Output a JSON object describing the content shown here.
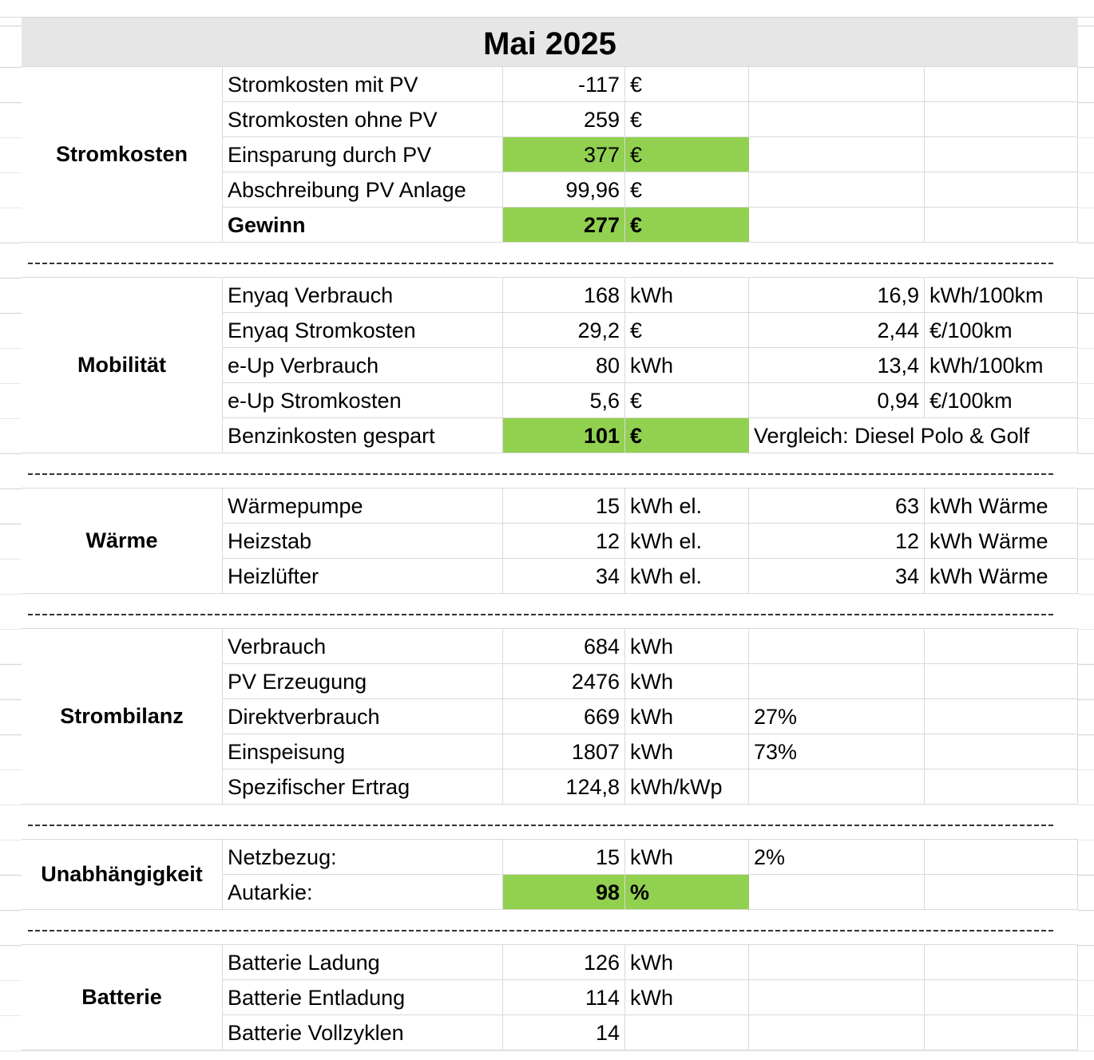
{
  "title": "Mai 2025",
  "sections": [
    {
      "label": "Stromkosten",
      "rows": [
        {
          "label": "Stromkosten mit PV",
          "value": "-117",
          "unit": "€"
        },
        {
          "label": "Stromkosten ohne PV",
          "value": "259",
          "unit": "€"
        },
        {
          "label": "Einsparung durch PV",
          "value": "377",
          "unit": "€",
          "highlight": true
        },
        {
          "label": "Abschreibung PV Anlage",
          "value": "99,96",
          "unit": "€"
        },
        {
          "label": "Gewinn",
          "value": "277",
          "unit": "€",
          "highlight": true,
          "bold": true
        }
      ]
    },
    {
      "label": "Mobilität",
      "rows": [
        {
          "label": "Enyaq Verbrauch",
          "value": "168",
          "unit": "kWh",
          "value2": "16,9",
          "unit2": "kWh/100km"
        },
        {
          "label": "Enyaq Stromkosten",
          "value": "29,2",
          "unit": "€",
          "value2": "2,44",
          "unit2": "€/100km"
        },
        {
          "label": "e-Up Verbrauch",
          "value": "80",
          "unit": "kWh",
          "value2": "13,4",
          "unit2": "kWh/100km"
        },
        {
          "label": "e-Up Stromkosten",
          "value": "5,6",
          "unit": "€",
          "value2": "0,94",
          "unit2": "€/100km"
        },
        {
          "label": "Benzinkosten gespart",
          "value": "101",
          "unit": "€",
          "highlight": true,
          "bold_value": true,
          "note": "Vergleich: Diesel Polo & Golf"
        }
      ]
    },
    {
      "label": "Wärme",
      "rows": [
        {
          "label": "Wärmepumpe",
          "value": "15",
          "unit": "kWh el.",
          "value2": "63",
          "unit2": "kWh Wärme"
        },
        {
          "label": "Heizstab",
          "value": "12",
          "unit": "kWh el.",
          "value2": "12",
          "unit2": "kWh Wärme"
        },
        {
          "label": "Heizlüfter",
          "value": "34",
          "unit": "kWh el.",
          "value2": "34",
          "unit2": "kWh Wärme"
        }
      ]
    },
    {
      "label": "Strombilanz",
      "rows": [
        {
          "label": "Verbrauch",
          "value": "684",
          "unit": "kWh"
        },
        {
          "label": "PV Erzeugung",
          "value": "2476",
          "unit": "kWh"
        },
        {
          "label": "Direktverbrauch",
          "value": "669",
          "unit": "kWh",
          "note": "27%"
        },
        {
          "label": "Einspeisung",
          "value": "1807",
          "unit": "kWh",
          "note": "73%"
        },
        {
          "label": "Spezifischer Ertrag",
          "value": "124,8",
          "unit": "kWh/kWp"
        }
      ]
    },
    {
      "label": "Unabhängigkeit",
      "rows": [
        {
          "label": "Netzbezug:",
          "value": "15",
          "unit": "kWh",
          "note": "2%"
        },
        {
          "label": "Autarkie:",
          "value": "98",
          "unit": "%",
          "highlight": true,
          "bold_value": true
        }
      ]
    },
    {
      "label": "Batterie",
      "rows": [
        {
          "label": "Batterie Ladung",
          "value": "126",
          "unit": "kWh"
        },
        {
          "label": "Batterie Entladung",
          "value": "114",
          "unit": "kWh"
        },
        {
          "label": "Batterie Vollzyklen",
          "value": "14"
        }
      ]
    }
  ]
}
